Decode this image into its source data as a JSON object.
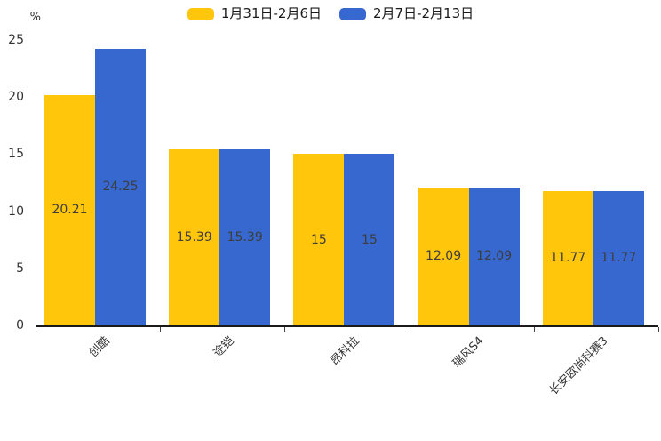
{
  "chart_data": {
    "type": "bar",
    "title": "",
    "ylabel": "%",
    "xlabel": "",
    "categories": [
      "创酷",
      "途铠",
      "昂科拉",
      "瑞风S4",
      "长安欧尚科赛3"
    ],
    "series": [
      {
        "name": "1月31日-2月6日",
        "color": "#FFC60C",
        "values": [
          20.21,
          15.39,
          15,
          12.09,
          11.77
        ]
      },
      {
        "name": "2月7日-2月13日",
        "color": "#3768CF",
        "values": [
          24.25,
          15.39,
          15,
          12.09,
          11.77
        ]
      }
    ],
    "yticks": [
      "0",
      "5",
      "10",
      "15",
      "20",
      "25"
    ],
    "ylim": [
      0,
      25
    ],
    "grid": false,
    "legend_position": "top",
    "bar_value_labels_shown": true
  },
  "style": {
    "background": "#ffffff",
    "bar_label_color": "#3d3d3d",
    "axis_color": "#1a1a1a",
    "tick_color": "#444444",
    "tick_label_color": "#333333"
  }
}
